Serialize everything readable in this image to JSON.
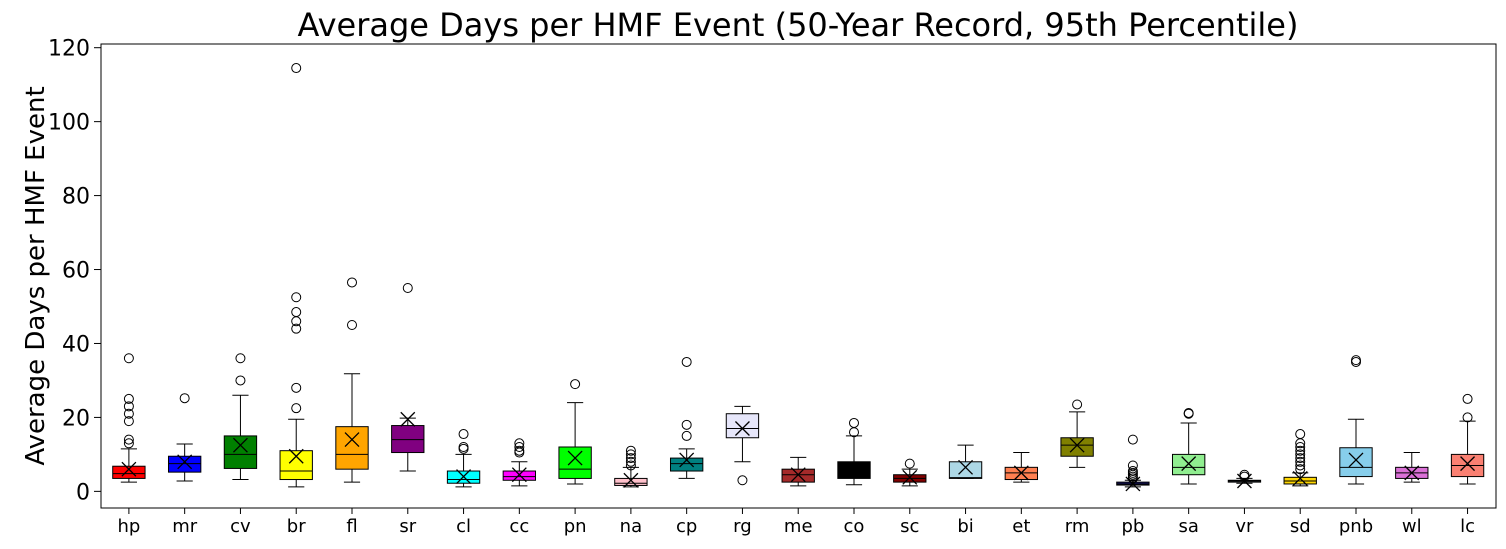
{
  "chart_data": {
    "type": "box",
    "title": "Average Days per HMF Event (50-Year Record, 95th Percentile)",
    "xlabel": "",
    "ylabel": "Average Days per HMF Event",
    "ylim": [
      -4.5,
      121
    ],
    "yticks": [
      0,
      20,
      40,
      60,
      80,
      100,
      120
    ],
    "grid": false,
    "categories": [
      "hp",
      "mr",
      "cv",
      "br",
      "fl",
      "sr",
      "cl",
      "cc",
      "pn",
      "na",
      "cp",
      "rg",
      "me",
      "co",
      "sc",
      "bi",
      "et",
      "rm",
      "pb",
      "sa",
      "vr",
      "sd",
      "pnb",
      "wl",
      "lc"
    ],
    "boxes": [
      {
        "label": "hp",
        "color": "#ff0000",
        "whislo": 2.5,
        "q1": 3.5,
        "med": 4.8,
        "q3": 6.8,
        "whishi": 11.5,
        "mean": 6.0,
        "fliers": [
          13,
          14,
          19,
          21,
          23,
          25,
          36
        ]
      },
      {
        "label": "mr",
        "color": "#0000ff",
        "whislo": 2.8,
        "q1": 5.2,
        "med": 7.5,
        "q3": 9.5,
        "whishi": 12.8,
        "mean": 8.0,
        "fliers": [
          25.2
        ]
      },
      {
        "label": "cv",
        "color": "#008000",
        "whislo": 3.2,
        "q1": 6.2,
        "med": 10.0,
        "q3": 15.0,
        "whishi": 26.0,
        "mean": 12.5,
        "fliers": [
          30,
          36
        ]
      },
      {
        "label": "br",
        "color": "#ffff00",
        "whislo": 1.2,
        "q1": 3.2,
        "med": 5.5,
        "q3": 11.0,
        "whishi": 19.5,
        "mean": 9.5,
        "fliers": [
          22.5,
          28,
          44,
          46,
          48.5,
          52.5,
          114.5
        ]
      },
      {
        "label": "fl",
        "color": "#ffa500",
        "whislo": 2.5,
        "q1": 6.0,
        "med": 10.0,
        "q3": 17.5,
        "whishi": 31.8,
        "mean": 14.0,
        "fliers": [
          45,
          56.5
        ]
      },
      {
        "label": "sr",
        "color": "#800080",
        "whislo": 5.5,
        "q1": 10.5,
        "med": 14.0,
        "q3": 17.8,
        "whishi": 19.8,
        "mean": 19.5,
        "fliers": [
          55
        ]
      },
      {
        "label": "cl",
        "color": "#00ffff",
        "whislo": 1.2,
        "q1": 2.2,
        "med": 3.2,
        "q3": 5.5,
        "whishi": 10.0,
        "mean": 4.0,
        "fliers": [
          11.5,
          12,
          15.5
        ]
      },
      {
        "label": "cc",
        "color": "#ff00ff",
        "whislo": 1.5,
        "q1": 3.0,
        "med": 4.0,
        "q3": 5.5,
        "whishi": 8.0,
        "mean": 4.5,
        "fliers": [
          10.5,
          11,
          12,
          13
        ]
      },
      {
        "label": "pn",
        "color": "#00ff00",
        "whislo": 2.0,
        "q1": 3.5,
        "med": 6.0,
        "q3": 12.0,
        "whishi": 24.0,
        "mean": 9.0,
        "fliers": [
          29
        ]
      },
      {
        "label": "na",
        "color": "#ffc0cb",
        "whislo": 1.2,
        "q1": 1.6,
        "med": 2.2,
        "q3": 3.5,
        "whishi": 6.5,
        "mean": 3.0,
        "fliers": [
          7,
          8,
          9,
          10,
          11
        ]
      },
      {
        "label": "cp",
        "color": "#008080",
        "whislo": 3.5,
        "q1": 5.5,
        "med": 7.5,
        "q3": 9.0,
        "whishi": 11.5,
        "mean": 8.5,
        "fliers": [
          15,
          18,
          35
        ]
      },
      {
        "label": "rg",
        "color": "#e6e6fa",
        "whislo": 8.0,
        "q1": 14.5,
        "med": 17.0,
        "q3": 21.0,
        "whishi": 23.0,
        "mean": 17.0,
        "fliers": [
          3
        ]
      },
      {
        "label": "me",
        "color": "#a52a2a",
        "whislo": 1.5,
        "q1": 2.5,
        "med": 4.5,
        "q3": 6.0,
        "whishi": 9.2,
        "mean": 4.5,
        "fliers": []
      },
      {
        "label": "co",
        "color": "#000000",
        "whislo": 1.8,
        "q1": 3.5,
        "med": 4.0,
        "q3": 8.0,
        "whishi": 15.0,
        "mean": 6.0,
        "fliers": [
          16,
          18.5
        ]
      },
      {
        "label": "sc",
        "color": "#800000",
        "whislo": 1.5,
        "q1": 2.5,
        "med": 3.5,
        "q3": 4.5,
        "whishi": 6.0,
        "mean": 3.8,
        "fliers": [
          7.5
        ]
      },
      {
        "label": "bi",
        "color": "#add8e6",
        "whislo": 3.5,
        "q1": 3.5,
        "med": 3.7,
        "q3": 8.0,
        "whishi": 12.5,
        "mean": 6.5,
        "fliers": []
      },
      {
        "label": "et",
        "color": "#ff7f50",
        "whislo": 2.5,
        "q1": 3.2,
        "med": 5.0,
        "q3": 6.5,
        "whishi": 10.5,
        "mean": 5.0,
        "fliers": []
      },
      {
        "label": "rm",
        "color": "#808000",
        "whislo": 6.5,
        "q1": 9.5,
        "med": 12.5,
        "q3": 14.5,
        "whishi": 21.5,
        "mean": 12.5,
        "fliers": [
          23.5
        ]
      },
      {
        "label": "pb",
        "color": "#191970",
        "whislo": 1.2,
        "q1": 1.7,
        "med": 2.0,
        "q3": 2.5,
        "whishi": 3.0,
        "mean": 2.0,
        "fliers": [
          3.5,
          4,
          4.5,
          5,
          5.5,
          7,
          14
        ]
      },
      {
        "label": "sa",
        "color": "#90ee90",
        "whislo": 2.0,
        "q1": 4.5,
        "med": 6.5,
        "q3": 10.0,
        "whishi": 18.5,
        "mean": 7.5,
        "fliers": [
          21,
          21.2
        ]
      },
      {
        "label": "vr",
        "color": "#708090",
        "whislo": 2.2,
        "q1": 2.5,
        "med": 2.8,
        "q3": 3.0,
        "whishi": 3.5,
        "mean": 2.8,
        "fliers": [
          4,
          4.5
        ]
      },
      {
        "label": "sd",
        "color": "#ffd700",
        "whislo": 1.5,
        "q1": 2.0,
        "med": 2.8,
        "q3": 3.8,
        "whishi": 5.0,
        "mean": 3.5,
        "fliers": [
          6,
          7,
          8,
          9,
          10,
          11,
          12,
          13,
          15.5
        ]
      },
      {
        "label": "pnb",
        "color": "#87ceeb",
        "whislo": 2.0,
        "q1": 4.0,
        "med": 6.5,
        "q3": 11.8,
        "whishi": 19.5,
        "mean": 8.5,
        "fliers": [
          35,
          35.5
        ]
      },
      {
        "label": "wl",
        "color": "#da70d6",
        "whislo": 2.5,
        "q1": 3.5,
        "med": 5.0,
        "q3": 6.5,
        "whishi": 10.5,
        "mean": 5.0,
        "fliers": []
      },
      {
        "label": "lc",
        "color": "#fa8072",
        "whislo": 2.0,
        "q1": 4.0,
        "med": 7.0,
        "q3": 10.0,
        "whishi": 19.0,
        "mean": 7.5,
        "fliers": [
          20,
          25
        ]
      }
    ]
  }
}
